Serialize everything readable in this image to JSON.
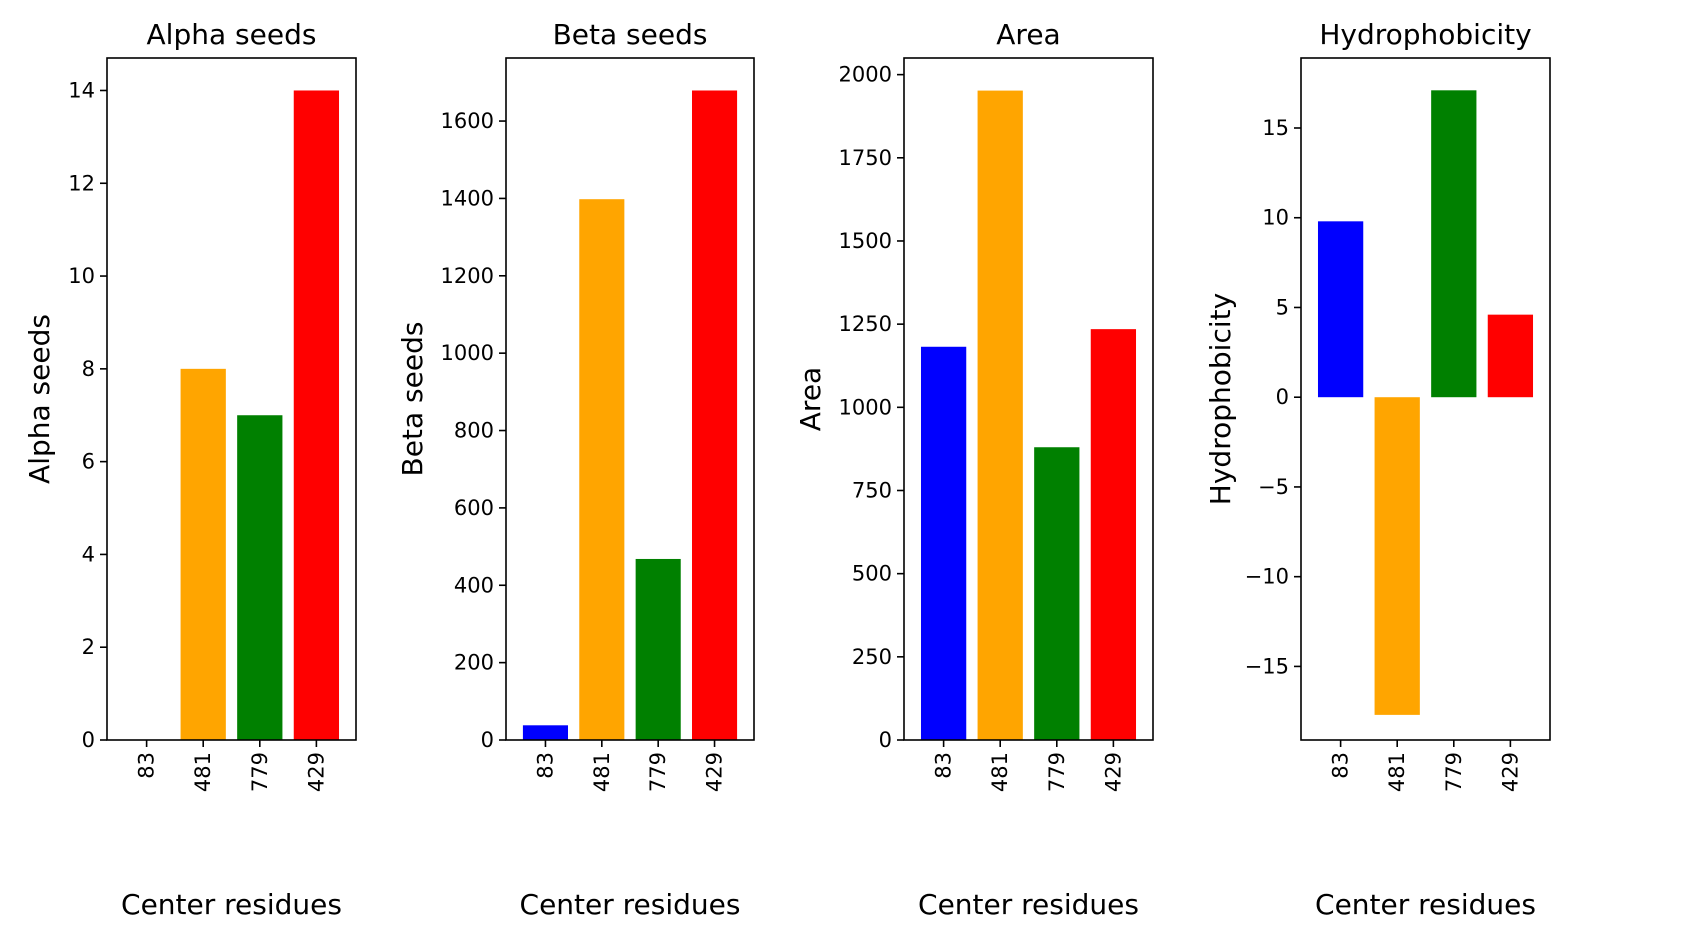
{
  "chart_data": [
    {
      "type": "bar",
      "title": "Alpha seeds",
      "xlabel": "Center residues",
      "ylabel": "Alpha seeds",
      "categories": [
        "83",
        "481",
        "779",
        "429"
      ],
      "values": [
        0,
        8,
        7,
        14
      ],
      "colors": [
        "#0000ff",
        "#ffa500",
        "#008000",
        "#ff0000"
      ],
      "ylim": [
        0,
        14.7
      ],
      "yticks": [
        0,
        2,
        4,
        6,
        8,
        10,
        12,
        14
      ],
      "ytick_labels": [
        "0",
        "2",
        "4",
        "6",
        "8",
        "10",
        "12",
        "14"
      ],
      "grid": false,
      "legend": "none"
    },
    {
      "type": "bar",
      "title": "Beta seeds",
      "xlabel": "Center residues",
      "ylabel": "Beta seeds",
      "categories": [
        "83",
        "481",
        "779",
        "429"
      ],
      "values": [
        38,
        1398,
        468,
        1679
      ],
      "colors": [
        "#0000ff",
        "#ffa500",
        "#008000",
        "#ff0000"
      ],
      "ylim": [
        0,
        1763
      ],
      "yticks": [
        0,
        200,
        400,
        600,
        800,
        1000,
        1200,
        1400,
        1600
      ],
      "ytick_labels": [
        "0",
        "200",
        "400",
        "600",
        "800",
        "1000",
        "1200",
        "1400",
        "1600"
      ],
      "grid": false,
      "legend": "none"
    },
    {
      "type": "bar",
      "title": "Area",
      "xlabel": "Center residues",
      "ylabel": "Area",
      "categories": [
        "83",
        "481",
        "779",
        "429"
      ],
      "values": [
        1182,
        1952,
        880,
        1235
      ],
      "colors": [
        "#0000ff",
        "#ffa500",
        "#008000",
        "#ff0000"
      ],
      "ylim": [
        0,
        2050
      ],
      "yticks": [
        0,
        250,
        500,
        750,
        1000,
        1250,
        1500,
        1750,
        2000
      ],
      "ytick_labels": [
        "0",
        "250",
        "500",
        "750",
        "1000",
        "1250",
        "1500",
        "1750",
        "2000"
      ],
      "grid": false,
      "legend": "none"
    },
    {
      "type": "bar",
      "title": "Hydrophobicity",
      "xlabel": "Center residues",
      "ylabel": "Hydrophobicity",
      "categories": [
        "83",
        "481",
        "779",
        "429"
      ],
      "values": [
        9.8,
        -17.7,
        17.1,
        4.6
      ],
      "colors": [
        "#0000ff",
        "#ffa500",
        "#008000",
        "#ff0000"
      ],
      "ylim": [
        -19.1,
        18.9
      ],
      "yticks": [
        -15,
        -10,
        -5,
        0,
        5,
        10,
        15
      ],
      "ytick_labels": [
        "−15",
        "−10",
        "−5",
        "0",
        "5",
        "10",
        "15"
      ],
      "grid": false,
      "legend": "none"
    }
  ]
}
